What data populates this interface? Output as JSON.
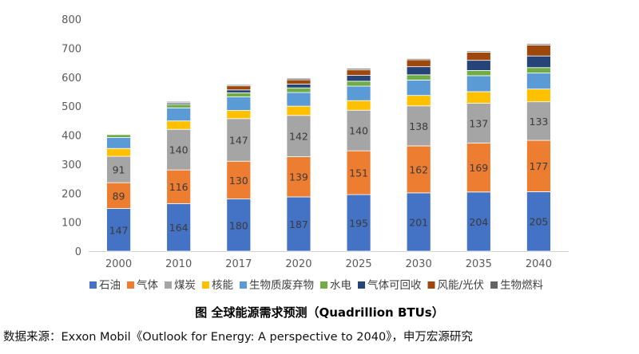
{
  "chart_data": {
    "type": "bar",
    "stacked": true,
    "categories": [
      "2000",
      "2010",
      "2017",
      "2020",
      "2025",
      "2030",
      "2035",
      "2040"
    ],
    "ylim": [
      0,
      800
    ],
    "yticks": [
      0,
      100,
      200,
      300,
      400,
      500,
      600,
      700,
      800
    ],
    "grid": false,
    "legend_position": "bottom",
    "series": [
      {
        "name": "石油",
        "color": "#4472C4",
        "values": [
          147,
          164,
          180,
          187,
          195,
          201,
          204,
          205
        ],
        "show_labels": true
      },
      {
        "name": "气体",
        "color": "#ED7D31",
        "values": [
          89,
          116,
          130,
          139,
          151,
          162,
          169,
          177
        ],
        "show_labels": true
      },
      {
        "name": "煤炭",
        "color": "#A5A5A5",
        "values": [
          91,
          140,
          147,
          142,
          140,
          138,
          137,
          133
        ],
        "show_labels": true
      },
      {
        "name": "核能",
        "color": "#FFC000",
        "values": [
          27,
          29,
          28,
          32,
          33,
          36,
          40,
          44
        ],
        "show_labels": false
      },
      {
        "name": "生物质废弃物",
        "color": "#5B9BD5",
        "values": [
          38,
          45,
          47,
          47,
          50,
          53,
          55,
          55
        ],
        "show_labels": false
      },
      {
        "name": "水电",
        "color": "#70AD47",
        "values": [
          10,
          12,
          14,
          16,
          17,
          18,
          18,
          19
        ],
        "show_labels": false
      },
      {
        "name": "气体可回收",
        "color": "#264478",
        "values": [
          2,
          5,
          10,
          13,
          20,
          28,
          35,
          40
        ],
        "show_labels": false
      },
      {
        "name": "风能/光伏",
        "color": "#9E480E",
        "values": [
          1,
          3,
          14,
          15,
          19,
          24,
          28,
          38
        ],
        "show_labels": false
      },
      {
        "name": "生物燃料",
        "color": "#636363",
        "values": [
          2,
          3,
          4,
          5,
          5,
          4,
          4,
          4
        ],
        "show_labels": false
      }
    ]
  },
  "caption": "图  全球能源需求预测（Quadrillion BTUs）",
  "source": "数据来源：Exxon Mobil《Outlook for Energy: A perspective to 2040》，申万宏源研究"
}
